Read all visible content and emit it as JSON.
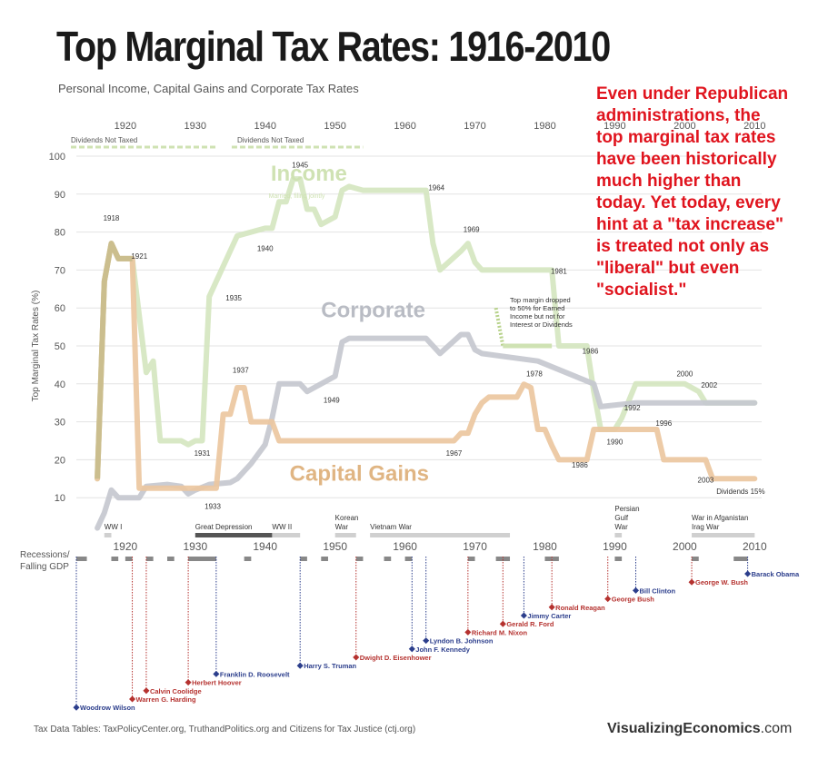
{
  "header": {
    "title": "Top Marginal Tax Rates: 1916-2010",
    "subtitle": "Personal Income, Capital Gains and Corporate Tax Rates"
  },
  "annotation": {
    "lines": [
      "Even under Republican",
      "administrations, the",
      "top marginal tax rates",
      "have been historically",
      "much higher than",
      "today.  Yet today, every",
      "hint at a \"tax increase\"",
      "is treated not only as",
      "\"liberal\" but even",
      "\"socialist.\""
    ]
  },
  "footer": {
    "source": "Tax Data Tables:  TaxPolicyCenter.org, TruthandPolitics.org and Citizens for Tax Justice (ctj.org)",
    "brand_bold": "VisualizingEconomics",
    "brand_suffix": ".com"
  },
  "chart_data": {
    "type": "line",
    "title": "Top Marginal Tax Rates: 1916-2010",
    "subtitle": "Personal Income, Capital Gains and Corporate Tax Rates",
    "ylabel": "Top Marginal Tax Rates (%)",
    "xlim": [
      1913,
      2011
    ],
    "ylim": [
      0,
      100
    ],
    "x_ticks": [
      1920,
      1930,
      1940,
      1950,
      1960,
      1970,
      1980,
      1990,
      2000,
      2010
    ],
    "y_ticks": [
      10,
      20,
      30,
      40,
      50,
      60,
      70,
      80,
      90,
      100
    ],
    "series": [
      {
        "name": "Income",
        "color": "#d5e6c0",
        "points": [
          [
            1916,
            15
          ],
          [
            1917,
            67
          ],
          [
            1918,
            77
          ],
          [
            1919,
            73
          ],
          [
            1921,
            73
          ],
          [
            1922,
            58
          ],
          [
            1923,
            43
          ],
          [
            1924,
            46
          ],
          [
            1925,
            25
          ],
          [
            1928,
            25
          ],
          [
            1929,
            24
          ],
          [
            1930,
            25
          ],
          [
            1931,
            25
          ],
          [
            1932,
            63
          ],
          [
            1936,
            79
          ],
          [
            1940,
            81
          ],
          [
            1941,
            81
          ],
          [
            1942,
            88
          ],
          [
            1943,
            88
          ],
          [
            1944,
            94
          ],
          [
            1945,
            94
          ],
          [
            1946,
            86
          ],
          [
            1947,
            86
          ],
          [
            1948,
            82
          ],
          [
            1950,
            84
          ],
          [
            1951,
            91
          ],
          [
            1952,
            92
          ],
          [
            1954,
            91
          ],
          [
            1963,
            91
          ],
          [
            1964,
            77
          ],
          [
            1965,
            70
          ],
          [
            1968,
            75
          ],
          [
            1969,
            77
          ],
          [
            1970,
            72
          ],
          [
            1971,
            70
          ],
          [
            1981,
            70
          ],
          [
            1982,
            50
          ],
          [
            1986,
            50
          ],
          [
            1987,
            38
          ],
          [
            1988,
            28
          ],
          [
            1990,
            28
          ],
          [
            1991,
            31
          ],
          [
            1993,
            40
          ],
          [
            2000,
            40
          ],
          [
            2001,
            39
          ],
          [
            2002,
            38
          ],
          [
            2003,
            35
          ],
          [
            2010,
            35
          ]
        ]
      },
      {
        "name": "Corporate",
        "color": "#c5c8cf",
        "points": [
          [
            1916,
            2
          ],
          [
            1917,
            6
          ],
          [
            1918,
            12
          ],
          [
            1919,
            10
          ],
          [
            1922,
            10
          ],
          [
            1923,
            13
          ],
          [
            1926,
            13.5
          ],
          [
            1928,
            13
          ],
          [
            1929,
            11
          ],
          [
            1930,
            12
          ],
          [
            1932,
            13.5
          ],
          [
            1935,
            14
          ],
          [
            1936,
            15
          ],
          [
            1938,
            19
          ],
          [
            1940,
            24
          ],
          [
            1941,
            31
          ],
          [
            1942,
            40
          ],
          [
            1945,
            40
          ],
          [
            1946,
            38
          ],
          [
            1950,
            42
          ],
          [
            1951,
            51
          ],
          [
            1952,
            52
          ],
          [
            1963,
            52
          ],
          [
            1964,
            50
          ],
          [
            1965,
            48
          ],
          [
            1968,
            53
          ],
          [
            1969,
            53
          ],
          [
            1970,
            49
          ],
          [
            1971,
            48
          ],
          [
            1979,
            46
          ],
          [
            1987,
            40
          ],
          [
            1988,
            34
          ],
          [
            1993,
            35
          ],
          [
            2010,
            35
          ]
        ]
      },
      {
        "name": "Capital Gains",
        "color": "#ebc79f",
        "points": [
          [
            1916,
            15
          ],
          [
            1917,
            67
          ],
          [
            1918,
            77
          ],
          [
            1919,
            73
          ],
          [
            1921,
            73
          ],
          [
            1922,
            12.5
          ],
          [
            1933,
            12.5
          ],
          [
            1934,
            32
          ],
          [
            1935,
            32
          ],
          [
            1936,
            39
          ],
          [
            1937,
            39
          ],
          [
            1938,
            30
          ],
          [
            1941,
            30
          ],
          [
            1942,
            25
          ],
          [
            1967,
            25
          ],
          [
            1968,
            27
          ],
          [
            1969,
            27
          ],
          [
            1970,
            32
          ],
          [
            1971,
            35
          ],
          [
            1972,
            36.5
          ],
          [
            1976,
            36.5
          ],
          [
            1977,
            39.9
          ],
          [
            1978,
            39
          ],
          [
            1979,
            28
          ],
          [
            1980,
            28
          ],
          [
            1981,
            23.7
          ],
          [
            1982,
            20
          ],
          [
            1986,
            20
          ],
          [
            1987,
            28
          ],
          [
            1996,
            28
          ],
          [
            1997,
            20
          ],
          [
            2003,
            20
          ],
          [
            2004,
            15
          ],
          [
            2010,
            15
          ]
        ]
      }
    ],
    "series_labels": [
      "Income",
      "Corporate",
      "Capital Gains"
    ],
    "income_note": "Married, filing jointly",
    "dividends_bars": [
      {
        "label": "Dividends Not Taxed",
        "start": 1913,
        "end": 1933
      },
      {
        "label": "Dividends Not Taxed",
        "start": 1936,
        "end": 1954
      }
    ],
    "dividend_note": {
      "lines": [
        "Top margin dropped",
        "to 50% for Earned",
        "Income but not for",
        "Interest or Dividends"
      ],
      "start_value": 60,
      "end_value": 50
    },
    "annotations": [
      {
        "label": "1918",
        "x": 1918,
        "y": 83
      },
      {
        "label": "1921",
        "x": 1922,
        "y": 73
      },
      {
        "label": "1931",
        "x": 1931,
        "y": 21
      },
      {
        "label": "1933",
        "x": 1932.5,
        "y": 7
      },
      {
        "label": "1935",
        "x": 1935.5,
        "y": 62
      },
      {
        "label": "1937",
        "x": 1936.5,
        "y": 43
      },
      {
        "label": "1940",
        "x": 1940,
        "y": 75
      },
      {
        "label": "1945",
        "x": 1945,
        "y": 97
      },
      {
        "label": "1949",
        "x": 1949.5,
        "y": 35
      },
      {
        "label": "1964",
        "x": 1964.5,
        "y": 91
      },
      {
        "label": "1967",
        "x": 1967,
        "y": 21
      },
      {
        "label": "1969",
        "x": 1969.5,
        "y": 80
      },
      {
        "label": "1978",
        "x": 1978.5,
        "y": 42
      },
      {
        "label": "1981",
        "x": 1982,
        "y": 69
      },
      {
        "label": "1986",
        "x": 1986.5,
        "y": 48
      },
      {
        "label": "1986",
        "x": 1985,
        "y": 18
      },
      {
        "label": "1990",
        "x": 1990,
        "y": 24
      },
      {
        "label": "1992",
        "x": 1992.5,
        "y": 33
      },
      {
        "label": "1996",
        "x": 1997,
        "y": 29
      },
      {
        "label": "2000",
        "x": 2000,
        "y": 42
      },
      {
        "label": "2002",
        "x": 2003.5,
        "y": 39
      },
      {
        "label": "2003",
        "x": 2003,
        "y": 14
      },
      {
        "label": "Dividends 15%",
        "x": 2008,
        "y": 11
      }
    ],
    "wars": [
      {
        "label": [
          "WW I"
        ],
        "start": 1917,
        "end": 1918
      },
      {
        "label": [
          "Great Depression"
        ],
        "start": 1930,
        "end": 1941
      },
      {
        "label": [
          "WW II"
        ],
        "start": 1941,
        "end": 1945
      },
      {
        "label": [
          "Korean",
          "War"
        ],
        "start": 1950,
        "end": 1953
      },
      {
        "label": [
          "Vietnam War"
        ],
        "start": 1955,
        "end": 1975
      },
      {
        "label": [
          "Persian",
          "Gulf",
          "War"
        ],
        "start": 1990,
        "end": 1991
      },
      {
        "label": [
          "War in Afganistan",
          "Irag War"
        ],
        "start": 2001,
        "end": 2010
      }
    ],
    "recessions_label": [
      "Recessions/",
      "Falling GDP"
    ],
    "recessions": [
      [
        1913,
        1914.5
      ],
      [
        1918,
        1919
      ],
      [
        1920,
        1921
      ],
      [
        1923,
        1924
      ],
      [
        1926,
        1927
      ],
      [
        1929,
        1933
      ],
      [
        1937,
        1938
      ],
      [
        1945,
        1946
      ],
      [
        1948,
        1949
      ],
      [
        1953,
        1954
      ],
      [
        1957,
        1958
      ],
      [
        1960,
        1961
      ],
      [
        1969,
        1970
      ],
      [
        1973,
        1975
      ],
      [
        1980,
        1981
      ],
      [
        1981,
        1982
      ],
      [
        1990,
        1991
      ],
      [
        2001,
        2002
      ],
      [
        2007,
        2009
      ]
    ],
    "presidents": [
      {
        "name": "Woodrow Wilson",
        "year": 1913,
        "party": "D",
        "level": 0
      },
      {
        "name": "Warren G. Harding",
        "year": 1921,
        "party": "R",
        "level": 1
      },
      {
        "name": "Calvin Coolidge",
        "year": 1923,
        "party": "R",
        "level": 2
      },
      {
        "name": "Herbert Hoover",
        "year": 1929,
        "party": "R",
        "level": 3
      },
      {
        "name": "Franklin D. Roosevelt",
        "year": 1933,
        "party": "D",
        "level": 4
      },
      {
        "name": "Harry S. Truman",
        "year": 1945,
        "party": "D",
        "level": 5
      },
      {
        "name": "Dwight D. Eisenhower",
        "year": 1953,
        "party": "R",
        "level": 6
      },
      {
        "name": "John F. Kennedy",
        "year": 1961,
        "party": "D",
        "level": 7
      },
      {
        "name": "Lyndon B. Johnson",
        "year": 1963,
        "party": "D",
        "level": 8
      },
      {
        "name": "Richard M. Nixon",
        "year": 1969,
        "party": "R",
        "level": 9
      },
      {
        "name": "Gerald R. Ford",
        "year": 1974,
        "party": "R",
        "level": 10
      },
      {
        "name": "Jimmy Carter",
        "year": 1977,
        "party": "D",
        "level": 11
      },
      {
        "name": "Ronald Reagan",
        "year": 1981,
        "party": "R",
        "level": 12
      },
      {
        "name": "George Bush",
        "year": 1989,
        "party": "R",
        "level": 13
      },
      {
        "name": "Bill Clinton",
        "year": 1993,
        "party": "D",
        "level": 14
      },
      {
        "name": "George W. Bush",
        "year": 2001,
        "party": "R",
        "level": 15
      },
      {
        "name": "Barack Obama",
        "year": 2009,
        "party": "D",
        "level": 16
      }
    ],
    "colors": {
      "grid": "#e3e3e3",
      "axis_text": "#555555",
      "democrat": "#2c3e8c",
      "republican": "#b5322f",
      "war_bar": "#d0d0d0",
      "depression_bar": "#555555",
      "recession": "#888888",
      "dividend_bar": "#cfe2b3"
    }
  }
}
